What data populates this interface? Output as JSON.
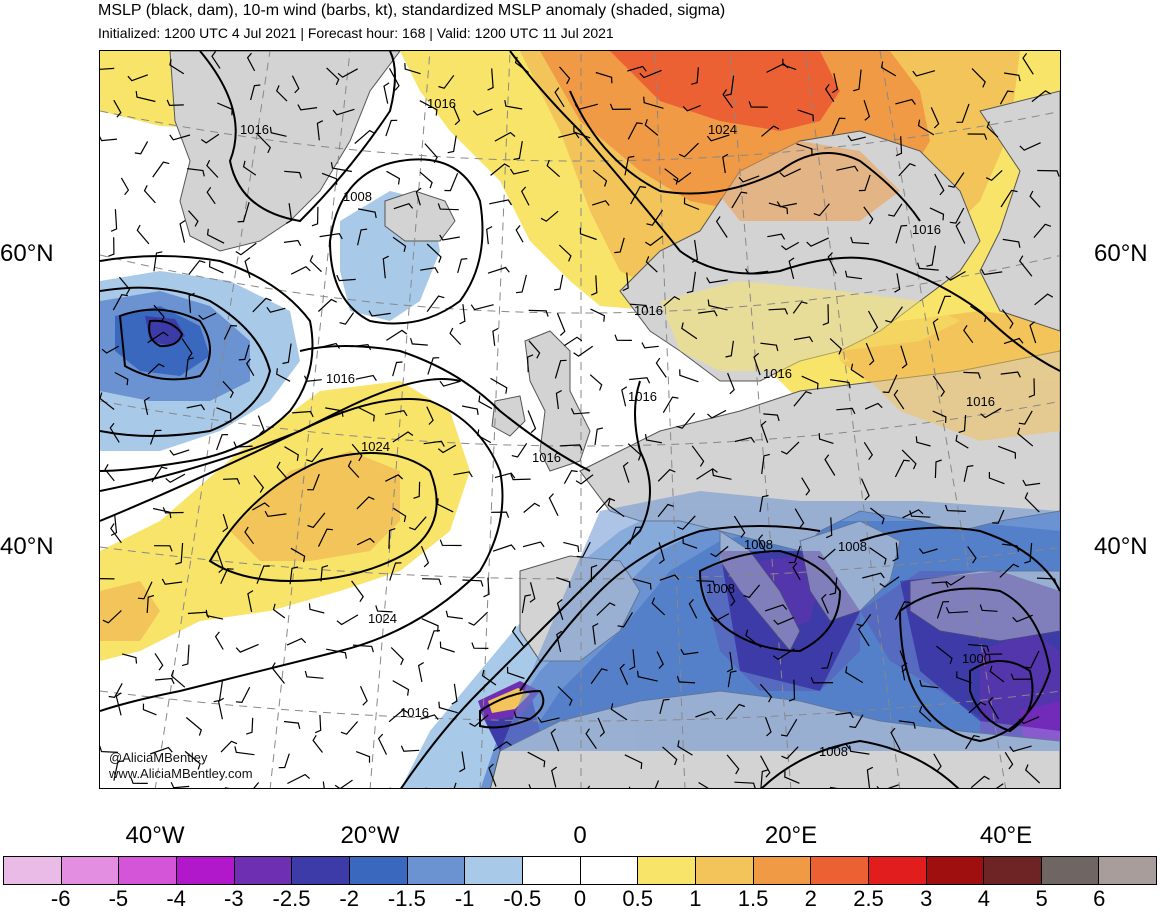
{
  "header": {
    "title": "MSLP (black, dam), 10-m wind (barbs, kt), standardized MSLP anomaly (shaded, sigma)",
    "subtitle": "Initialized: 1200 UTC 4 Jul 2021 | Forecast hour: 168 | Valid: 1200 UTC 11 Jul 2021"
  },
  "credits": {
    "twitter": "@AliciaMBentley",
    "website": "www.AliciaMBentley.com"
  },
  "map": {
    "lat_labels": [
      "60°N",
      "40°N"
    ],
    "lon_labels": [
      "40°W",
      "20°W",
      "0",
      "20°E",
      "40°E"
    ],
    "contour_labels": [
      "1016",
      "1016",
      "1008",
      "1024",
      "1016",
      "1016",
      "1016",
      "1016",
      "1016",
      "1024",
      "1016",
      "1016",
      "1008",
      "1008",
      "1008",
      "1024",
      "1016",
      "1000",
      "1008"
    ]
  },
  "colorbar": {
    "labels": [
      "-6",
      "-5",
      "-4",
      "-3",
      "-2.5",
      "-2",
      "-1.5",
      "-1",
      "-0.5",
      "0",
      "0.5",
      "1",
      "1.5",
      "2",
      "2.5",
      "3",
      "4",
      "5",
      "6"
    ],
    "colors": [
      "#ebbbe8",
      "#e38ee0",
      "#d455d8",
      "#b118cc",
      "#6e2fb2",
      "#3d3ba8",
      "#3a68bf",
      "#6b93d2",
      "#a8c9e8",
      "#ffffff",
      "#ffffff",
      "#f8e468",
      "#f2c45a",
      "#f09a45",
      "#ec6133",
      "#e21d1d",
      "#a00f0f",
      "#6e2424",
      "#6f6663",
      "#a89d9b"
    ]
  }
}
